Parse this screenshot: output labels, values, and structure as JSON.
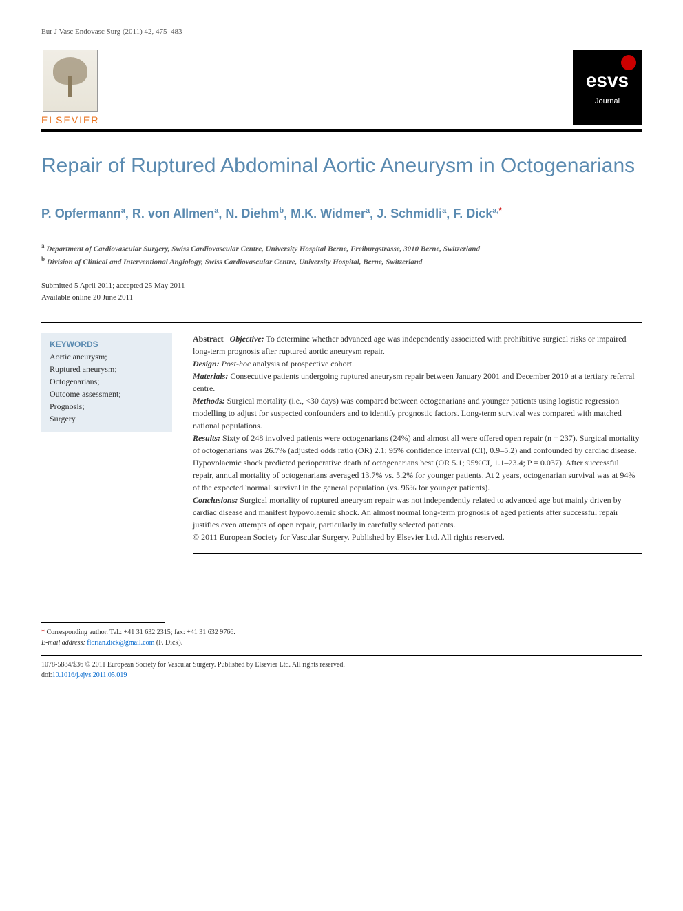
{
  "citation": "Eur J Vasc Endovasc Surg (2011) 42, 475–483",
  "publisher": {
    "name": "ELSEVIER"
  },
  "society_logo": {
    "name": "esvs",
    "subtitle": "Journal"
  },
  "title": "Repair of Ruptured Abdominal Aortic Aneurysm in Octogenarians",
  "authors_html": "P. Opfermann ᵃ, R. von Allmen ᵃ, N. Diehm ᵇ, M.K. Widmer ᵃ, J. Schmidli ᵃ, F. Dick ᵃ,*",
  "authors": [
    {
      "name": "P. Opfermann",
      "aff": "a"
    },
    {
      "name": "R. von Allmen",
      "aff": "a"
    },
    {
      "name": "N. Diehm",
      "aff": "b"
    },
    {
      "name": "M.K. Widmer",
      "aff": "a"
    },
    {
      "name": "J. Schmidli",
      "aff": "a"
    },
    {
      "name": "F. Dick",
      "aff": "a",
      "corresponding": true
    }
  ],
  "affiliations": {
    "a": "Department of Cardiovascular Surgery, Swiss Cardiovascular Centre, University Hospital Berne, Freiburgstrasse, 3010 Berne, Switzerland",
    "b": "Division of Clinical and Interventional Angiology, Swiss Cardiovascular Centre, University Hospital, Berne, Switzerland"
  },
  "dates": {
    "submitted_accepted": "Submitted 5 April 2011; accepted 25 May 2011",
    "online": "Available online 20 June 2011"
  },
  "keywords": {
    "heading": "KEYWORDS",
    "items": [
      "Aortic aneurysm;",
      "Ruptured aneurysm;",
      "Octogenarians;",
      "Outcome assessment;",
      "Prognosis;",
      "Surgery"
    ]
  },
  "abstract": {
    "label": "Abstract",
    "sections": {
      "Objective": "To determine whether advanced age was independently associated with prohibitive surgical risks or impaired long-term prognosis after ruptured aortic aneurysm repair.",
      "Design": "Post-hoc analysis of prospective cohort.",
      "Materials": "Consecutive patients undergoing ruptured aneurysm repair between January 2001 and December 2010 at a tertiary referral centre.",
      "Methods": "Surgical mortality (i.e., <30 days) was compared between octogenarians and younger patients using logistic regression modelling to adjust for suspected confounders and to identify prognostic factors. Long-term survival was compared with matched national populations.",
      "Results": "Sixty of 248 involved patients were octogenarians (24%) and almost all were offered open repair (n = 237). Surgical mortality of octogenarians was 26.7% (adjusted odds ratio (OR) 2.1; 95% confidence interval (CI), 0.9–5.2) and confounded by cardiac disease. Hypovolaemic shock predicted perioperative death of octogenarians best (OR 5.1; 95%CI, 1.1–23.4; P = 0.037). After successful repair, annual mortality of octogenarians averaged 13.7% vs. 5.2% for younger patients. At 2 years, octogenarian survival was at 94% of the expected 'normal' survival in the general population (vs. 96% for younger patients).",
      "Conclusions": "Surgical mortality of ruptured aneurysm repair was not independently related to advanced age but mainly driven by cardiac disease and manifest hypovolaemic shock. An almost normal long-term prognosis of aged patients after successful repair justifies even attempts of open repair, particularly in carefully selected patients."
    },
    "copyright": "© 2011 European Society for Vascular Surgery. Published by Elsevier Ltd. All rights reserved."
  },
  "corresponding": {
    "text": "Corresponding author. Tel.: +41 31 632 2315; fax: +41 31 632 9766.",
    "email_label": "E-mail address:",
    "email": "florian.dick@gmail.com",
    "email_paren": "(F. Dick)."
  },
  "footer": {
    "issn_line": "1078-5884/$36 © 2011 European Society for Vascular Surgery. Published by Elsevier Ltd. All rights reserved.",
    "doi_label": "doi:",
    "doi": "10.1016/j.ejvs.2011.05.019"
  },
  "colors": {
    "heading_blue": "#5a8ab0",
    "elsevier_orange": "#e9711c",
    "keywords_bg": "#e6edf3",
    "link_blue": "#0066cc",
    "star_red": "#c00"
  }
}
